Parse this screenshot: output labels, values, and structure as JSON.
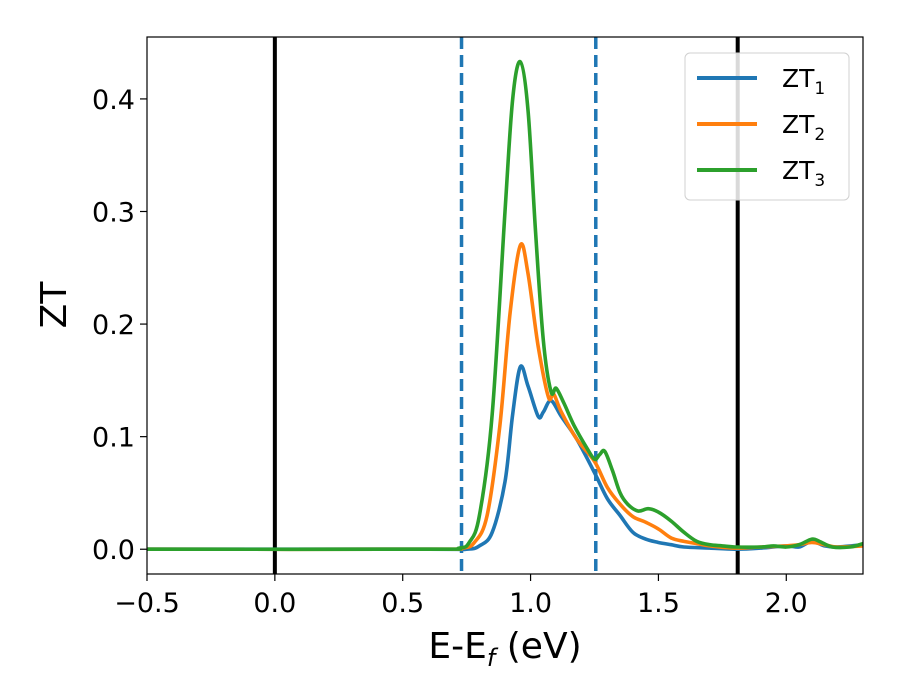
{
  "chart_data": {
    "type": "line",
    "title": "",
    "xlabel": {
      "main": "E-E",
      "sub": "f",
      "unit": " (eV)"
    },
    "ylabel": "ZT",
    "xlim": [
      -0.5,
      2.3
    ],
    "ylim": [
      -0.022,
      0.455
    ],
    "xticks": [
      -0.5,
      0.0,
      0.5,
      1.0,
      1.5,
      2.0
    ],
    "xtick_labels": [
      "−0.5",
      "0.0",
      "0.5",
      "1.0",
      "1.5",
      "2.0"
    ],
    "yticks": [
      0.0,
      0.1,
      0.2,
      0.3,
      0.4
    ],
    "ytick_labels": [
      "0.0",
      "0.1",
      "0.2",
      "0.3",
      "0.4"
    ],
    "grid": false,
    "legend_position": "top-right",
    "vertical_lines": [
      {
        "x": 0.0,
        "style": "solid",
        "color": "#000000"
      },
      {
        "x": 1.81,
        "style": "solid",
        "color": "#000000"
      },
      {
        "x": 0.73,
        "style": "dashed",
        "color": "#1f77b4"
      },
      {
        "x": 1.255,
        "style": "dashed",
        "color": "#1f77b4"
      }
    ],
    "series": [
      {
        "name": "ZT",
        "name_sub": "1",
        "color": "#1f77b4",
        "points": [
          [
            -0.5,
            0
          ],
          [
            0.6,
            0
          ],
          [
            0.75,
            0.0
          ],
          [
            0.8,
            0.003
          ],
          [
            0.85,
            0.015
          ],
          [
            0.9,
            0.06
          ],
          [
            0.93,
            0.12
          ],
          [
            0.96,
            0.162
          ],
          [
            0.99,
            0.145
          ],
          [
            1.03,
            0.118
          ],
          [
            1.05,
            0.122
          ],
          [
            1.08,
            0.132
          ],
          [
            1.12,
            0.118
          ],
          [
            1.18,
            0.098
          ],
          [
            1.25,
            0.068
          ],
          [
            1.3,
            0.045
          ],
          [
            1.35,
            0.03
          ],
          [
            1.4,
            0.015
          ],
          [
            1.45,
            0.009
          ],
          [
            1.5,
            0.006
          ],
          [
            1.55,
            0.004
          ],
          [
            1.6,
            0.002
          ],
          [
            1.7,
            0.001
          ],
          [
            1.8,
            0.0
          ],
          [
            1.9,
            0.001
          ],
          [
            2.0,
            0.003
          ],
          [
            2.05,
            0.002
          ],
          [
            2.1,
            0.007
          ],
          [
            2.15,
            0.003
          ],
          [
            2.2,
            0.002
          ],
          [
            2.3,
            0.004
          ]
        ]
      },
      {
        "name": "ZT",
        "name_sub": "2",
        "color": "#ff7f0e",
        "points": [
          [
            -0.5,
            0
          ],
          [
            0.6,
            0
          ],
          [
            0.73,
            0.001
          ],
          [
            0.78,
            0.006
          ],
          [
            0.83,
            0.03
          ],
          [
            0.88,
            0.11
          ],
          [
            0.92,
            0.21
          ],
          [
            0.96,
            0.27
          ],
          [
            0.99,
            0.245
          ],
          [
            1.03,
            0.18
          ],
          [
            1.07,
            0.135
          ],
          [
            1.09,
            0.138
          ],
          [
            1.12,
            0.122
          ],
          [
            1.18,
            0.098
          ],
          [
            1.25,
            0.078
          ],
          [
            1.3,
            0.055
          ],
          [
            1.35,
            0.04
          ],
          [
            1.4,
            0.029
          ],
          [
            1.45,
            0.024
          ],
          [
            1.5,
            0.018
          ],
          [
            1.55,
            0.01
          ],
          [
            1.6,
            0.007
          ],
          [
            1.65,
            0.005
          ],
          [
            1.7,
            0.003
          ],
          [
            1.8,
            0.001
          ],
          [
            1.9,
            0.002
          ],
          [
            2.0,
            0.003
          ],
          [
            2.05,
            0.004
          ],
          [
            2.1,
            0.006
          ],
          [
            2.15,
            0.004
          ],
          [
            2.2,
            0.002
          ],
          [
            2.3,
            0.003
          ]
        ]
      },
      {
        "name": "ZT",
        "name_sub": "3",
        "color": "#2ca02c",
        "points": [
          [
            -0.5,
            0
          ],
          [
            0.6,
            0
          ],
          [
            0.72,
            0.001
          ],
          [
            0.76,
            0.006
          ],
          [
            0.8,
            0.03
          ],
          [
            0.85,
            0.12
          ],
          [
            0.9,
            0.3
          ],
          [
            0.93,
            0.4
          ],
          [
            0.96,
            0.433
          ],
          [
            0.99,
            0.39
          ],
          [
            1.02,
            0.28
          ],
          [
            1.05,
            0.185
          ],
          [
            1.08,
            0.14
          ],
          [
            1.1,
            0.143
          ],
          [
            1.13,
            0.13
          ],
          [
            1.17,
            0.11
          ],
          [
            1.22,
            0.09
          ],
          [
            1.25,
            0.08
          ],
          [
            1.27,
            0.084
          ],
          [
            1.29,
            0.087
          ],
          [
            1.32,
            0.07
          ],
          [
            1.35,
            0.05
          ],
          [
            1.38,
            0.04
          ],
          [
            1.42,
            0.034
          ],
          [
            1.46,
            0.036
          ],
          [
            1.5,
            0.033
          ],
          [
            1.55,
            0.025
          ],
          [
            1.6,
            0.015
          ],
          [
            1.65,
            0.007
          ],
          [
            1.7,
            0.004
          ],
          [
            1.75,
            0.003
          ],
          [
            1.8,
            0.002
          ],
          [
            1.9,
            0.002
          ],
          [
            1.95,
            0.003
          ],
          [
            2.0,
            0.002
          ],
          [
            2.05,
            0.004
          ],
          [
            2.1,
            0.009
          ],
          [
            2.13,
            0.007
          ],
          [
            2.18,
            0.002
          ],
          [
            2.25,
            0.002
          ],
          [
            2.3,
            0.005
          ]
        ]
      }
    ]
  }
}
